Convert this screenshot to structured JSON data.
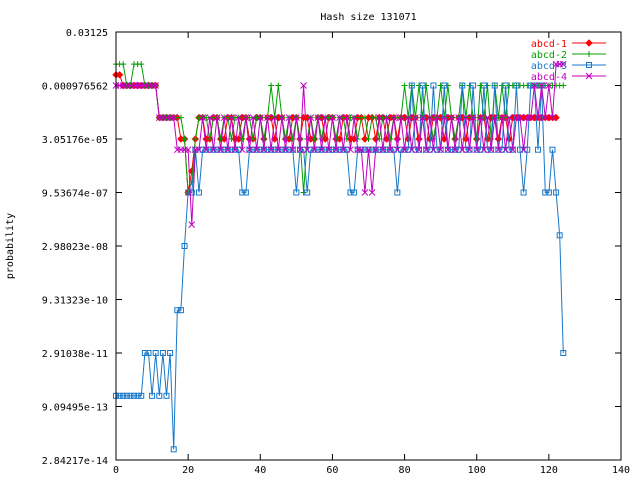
{
  "chart_data": {
    "type": "line",
    "title": "Hash size 131071",
    "xlabel": "",
    "ylabel": "probability",
    "xlim": [
      0,
      140
    ],
    "x_ticks": [
      0,
      20,
      40,
      60,
      80,
      100,
      120,
      140
    ],
    "yscale": "log2",
    "ylim_exp": [
      -45,
      -5
    ],
    "y_ticks": [
      {
        "exp": -5,
        "label": "0.03125"
      },
      {
        "exp": -10,
        "label": "0.000976562"
      },
      {
        "exp": -15,
        "label": "3.05176e-05"
      },
      {
        "exp": -20,
        "label": "9.53674e-07"
      },
      {
        "exp": -25,
        "label": "2.98023e-08"
      },
      {
        "exp": -30,
        "label": "9.31323e-10"
      },
      {
        "exp": -35,
        "label": "2.91038e-11"
      },
      {
        "exp": -40,
        "label": "9.09495e-13"
      },
      {
        "exp": -45,
        "label": "2.84217e-14"
      }
    ],
    "grid": false,
    "legend_position": "top-right",
    "series": [
      {
        "name": "abcd-1",
        "color": "#ff0000",
        "marker": "diamond",
        "x_start": 0,
        "y_exp": [
          -9,
          -9,
          -10,
          -10,
          -10,
          -10,
          -10,
          -10,
          -10,
          -10,
          -10,
          -10,
          -13,
          -13,
          -13,
          -13,
          -13,
          -13,
          -15,
          -15,
          -20,
          -18,
          -15,
          -13,
          -13,
          -15,
          -15,
          -13,
          -13,
          -15,
          -15,
          -13,
          -13,
          -15,
          -15,
          -13,
          -13,
          -15,
          -15,
          -13,
          -13,
          -15,
          -13,
          -13,
          -15,
          -13,
          -13,
          -15,
          -15,
          -13,
          -13,
          -15,
          -13,
          -13,
          -15,
          -15,
          -13,
          -13,
          -15,
          -13,
          -13,
          -15,
          -15,
          -13,
          -13,
          -15,
          -15,
          -13,
          -13,
          -15,
          -13,
          -13,
          -15,
          -13,
          -13,
          -15,
          -13,
          -13,
          -15,
          -13,
          -13,
          -15,
          -13,
          -13,
          -15,
          -13,
          -13,
          -15,
          -13,
          -13,
          -13,
          -15,
          -13,
          -13,
          -15,
          -13,
          -13,
          -15,
          -13,
          -13,
          -15,
          -13,
          -13,
          -15,
          -13,
          -13,
          -15,
          -13,
          -13,
          -15,
          -13,
          -13,
          -13,
          -13,
          -13,
          -13,
          -13,
          -13,
          -13,
          -13,
          -13,
          -13,
          -13
        ]
      },
      {
        "name": "abcd-2",
        "color": "#00a000",
        "marker": "plus",
        "x_start": 0,
        "y_exp": [
          -8,
          -8,
          -8,
          -10,
          -10,
          -8,
          -8,
          -8,
          -10,
          -10,
          -10,
          -10,
          -13,
          -13,
          -13,
          -13,
          -13,
          -13,
          -13,
          -15,
          -20,
          -19,
          -15,
          -13,
          -13,
          -13,
          -15,
          -13,
          -13,
          -15,
          -13,
          -13,
          -15,
          -13,
          -13,
          -15,
          -13,
          -13,
          -15,
          -13,
          -13,
          -15,
          -13,
          -10,
          -13,
          -10,
          -13,
          -15,
          -13,
          -15,
          -13,
          -15,
          -20,
          -15,
          -13,
          -15,
          -13,
          -15,
          -13,
          -13,
          -13,
          -15,
          -13,
          -13,
          -15,
          -13,
          -13,
          -15,
          -13,
          -13,
          -15,
          -13,
          -13,
          -15,
          -13,
          -13,
          -15,
          -13,
          -13,
          -13,
          -10,
          -13,
          -10,
          -13,
          -10,
          -13,
          -10,
          -13,
          -15,
          -13,
          -10,
          -13,
          -10,
          -13,
          -15,
          -13,
          -10,
          -13,
          -10,
          -13,
          -15,
          -10,
          -13,
          -10,
          -15,
          -10,
          -13,
          -10,
          -13,
          -10,
          -10,
          -10,
          -10,
          -10,
          -10,
          -10,
          -10,
          -10,
          -10,
          -10,
          -10,
          -10,
          -10,
          -10,
          -10
        ]
      },
      {
        "name": "abcd-3",
        "color": "#1878c8",
        "marker": "square",
        "x_start": 0,
        "y_exp": [
          -39,
          -39,
          -39,
          -39,
          -39,
          -39,
          -39,
          -39,
          -35,
          -35,
          -39,
          -35,
          -39,
          -35,
          -39,
          -35,
          -44,
          -31,
          -31,
          -25,
          -20,
          -20,
          -16,
          -20,
          -16,
          -16,
          -16,
          -16,
          -16,
          -16,
          -16,
          -16,
          -16,
          -16,
          -16,
          -20,
          -20,
          -16,
          -16,
          -16,
          -16,
          -16,
          -16,
          -16,
          -16,
          -16,
          -16,
          -16,
          -16,
          -16,
          -20,
          -16,
          -16,
          -20,
          -16,
          -16,
          -16,
          -16,
          -16,
          -16,
          -16,
          -16,
          -16,
          -16,
          -16,
          -20,
          -20,
          -16,
          -16,
          -16,
          -16,
          -16,
          -16,
          -16,
          -16,
          -16,
          -16,
          -16,
          -20,
          -16,
          -16,
          -16,
          -10,
          -16,
          -16,
          -10,
          -16,
          -16,
          -10,
          -16,
          -16,
          -10,
          -16,
          -16,
          -16,
          -16,
          -10,
          -16,
          -16,
          -10,
          -16,
          -16,
          -10,
          -16,
          -16,
          -10,
          -16,
          -16,
          -10,
          -16,
          -16,
          -10,
          -16,
          -20,
          -16,
          -10,
          -10,
          -16,
          -10,
          -20,
          -20,
          -16,
          -20,
          -24,
          -35
        ]
      },
      {
        "name": "abcd-4",
        "color": "#c000c0",
        "marker": "cross",
        "x_start": 0,
        "y_exp": [
          -10,
          -10,
          -10,
          -10,
          -10,
          -10,
          -10,
          -10,
          -10,
          -10,
          -10,
          -10,
          -13,
          -13,
          -13,
          -13,
          -13,
          -16,
          -16,
          -16,
          -16,
          -23,
          -16,
          -16,
          -13,
          -16,
          -13,
          -16,
          -13,
          -16,
          -13,
          -16,
          -13,
          -16,
          -13,
          -16,
          -13,
          -16,
          -13,
          -16,
          -13,
          -16,
          -13,
          -16,
          -13,
          -16,
          -13,
          -16,
          -13,
          -16,
          -13,
          -16,
          -10,
          -16,
          -13,
          -16,
          -13,
          -16,
          -13,
          -16,
          -13,
          -16,
          -13,
          -16,
          -13,
          -16,
          -13,
          -16,
          -16,
          -20,
          -16,
          -20,
          -16,
          -13,
          -16,
          -13,
          -16,
          -13,
          -16,
          -13,
          -16,
          -13,
          -16,
          -13,
          -16,
          -13,
          -16,
          -13,
          -16,
          -13,
          -16,
          -13,
          -16,
          -13,
          -16,
          -13,
          -16,
          -13,
          -16,
          -13,
          -16,
          -13,
          -16,
          -13,
          -16,
          -13,
          -16,
          -13,
          -16,
          -13,
          -16,
          -13,
          -13,
          -16,
          -13,
          -13,
          -10,
          -13,
          -10,
          -13,
          -10,
          -13,
          -8,
          -8,
          -8
        ]
      }
    ]
  }
}
